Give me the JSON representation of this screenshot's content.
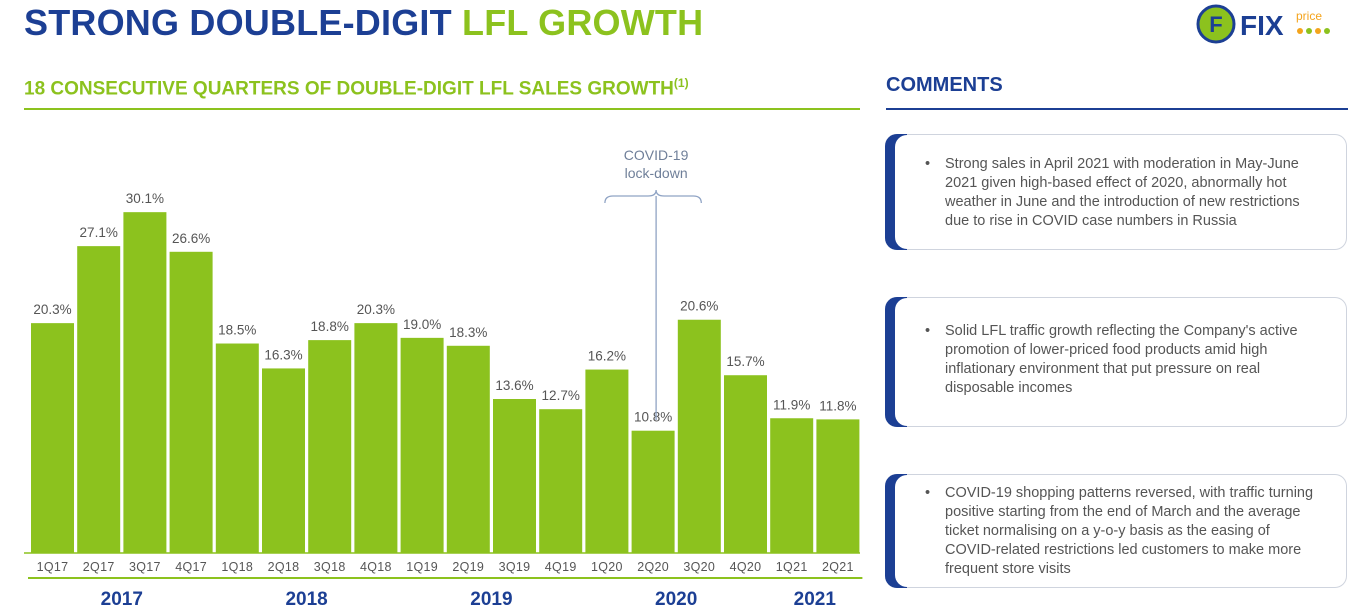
{
  "page": {
    "title_main": "STRONG DOUBLE-DIGIT",
    "title_accent": "LFL GROWTH",
    "chart_heading": "18 CONSECUTIVE QUARTERS OF DOUBLE-DIGIT LFL SALES GROWTH",
    "chart_heading_note": "(1)",
    "comments_heading": "COMMENTS"
  },
  "logo": {
    "letter": "F",
    "wordmark": "FIX",
    "subword": "price",
    "colors": {
      "blue": "#1c3f94",
      "green": "#8cc21e",
      "orange": "#f4a41c"
    }
  },
  "comments": [
    "Strong sales in April 2021 with moderation in May-June 2021 given high-based effect of 2020, abnormally hot weather in June and the introduction of new restrictions due to rise in COVID case numbers in Russia",
    "Solid LFL traffic growth reflecting the Company's active promotion of lower-priced food products amid high inflationary environment that put pressure on real disposable incomes",
    "COVID-19 shopping patterns reversed, with traffic turning positive starting from the end of March and the average ticket normalising on a y-o-y basis as the easing of COVID-related restrictions led customers to make more frequent store visits"
  ],
  "chart_data": {
    "type": "bar",
    "title": "18 CONSECUTIVE QUARTERS OF DOUBLE-DIGIT LFL SALES GROWTH",
    "categories": [
      "1Q17",
      "2Q17",
      "3Q17",
      "4Q17",
      "1Q18",
      "2Q18",
      "3Q18",
      "4Q18",
      "1Q19",
      "2Q19",
      "3Q19",
      "4Q19",
      "1Q20",
      "2Q20",
      "3Q20",
      "4Q20",
      "1Q21",
      "2Q21"
    ],
    "values": [
      20.3,
      27.1,
      30.1,
      26.6,
      18.5,
      16.3,
      18.8,
      20.3,
      19.0,
      18.3,
      13.6,
      12.7,
      16.2,
      10.8,
      20.6,
      15.7,
      11.9,
      11.8
    ],
    "value_suffix": "%",
    "ylim": [
      0,
      34
    ],
    "xlabel": "",
    "ylabel": "",
    "grid": false,
    "year_groups": [
      {
        "label": "2017",
        "start": 0,
        "end": 3
      },
      {
        "label": "2018",
        "start": 4,
        "end": 7
      },
      {
        "label": "2019",
        "start": 8,
        "end": 11
      },
      {
        "label": "2020",
        "start": 12,
        "end": 15
      },
      {
        "label": "2021",
        "start": 16,
        "end": 17
      }
    ],
    "annotation": {
      "lines": [
        "COVID-19",
        "lock-down"
      ],
      "start": 12,
      "end": 14,
      "pointer_index": 13
    },
    "colors": {
      "bar": "#8cc21e",
      "axis": "#8cc21e",
      "label": "#555555",
      "year": "#1c3f94",
      "annotation": "#6f7f99",
      "annotation_line": "#8fa3c4"
    }
  }
}
